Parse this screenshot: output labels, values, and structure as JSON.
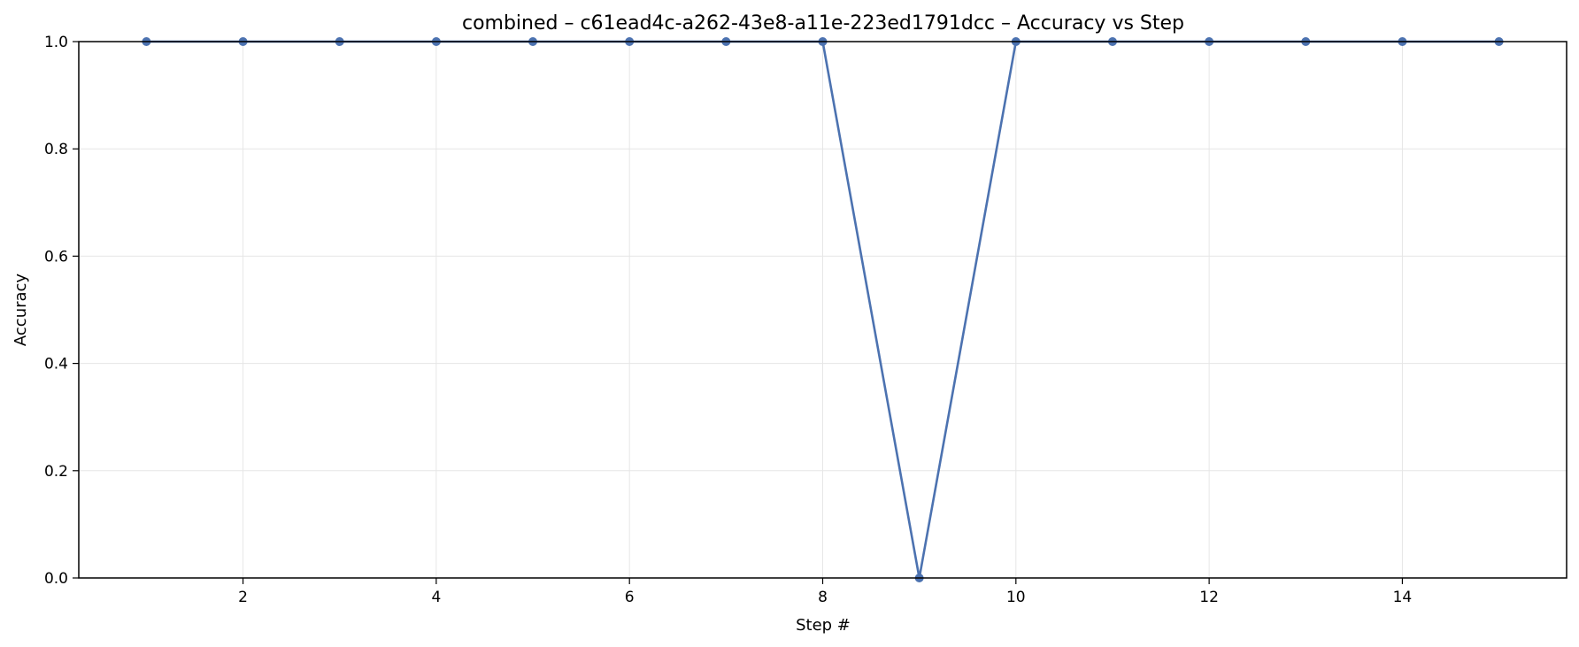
{
  "chart_data": {
    "type": "line",
    "title": "combined – c61ead4c-a262-43e8-a11e-223ed1791dcc – Accuracy vs Step",
    "xlabel": "Step #",
    "ylabel": "Accuracy",
    "x": [
      1,
      2,
      3,
      4,
      5,
      6,
      7,
      8,
      9,
      10,
      11,
      12,
      13,
      14,
      15
    ],
    "series": [
      {
        "values": [
          1.0,
          1.0,
          1.0,
          1.0,
          1.0,
          1.0,
          1.0,
          1.0,
          0.0,
          1.0,
          1.0,
          1.0,
          1.0,
          1.0,
          1.0
        ],
        "color": "#4c72b0"
      }
    ],
    "xlim": [
      0.3,
      15.7
    ],
    "ylim": [
      0.0,
      1.0
    ],
    "xticks": [
      2,
      4,
      6,
      8,
      10,
      12,
      14
    ],
    "xtick_labels": [
      "2",
      "4",
      "6",
      "8",
      "10",
      "12",
      "14"
    ],
    "yticks": [
      0.0,
      0.2,
      0.4,
      0.6,
      0.8,
      1.0
    ],
    "ytick_labels": [
      "0.0",
      "0.2",
      "0.4",
      "0.6",
      "0.8",
      "1.0"
    ],
    "grid": true,
    "grid_color": "#e6e6e6",
    "marker": "circle"
  }
}
